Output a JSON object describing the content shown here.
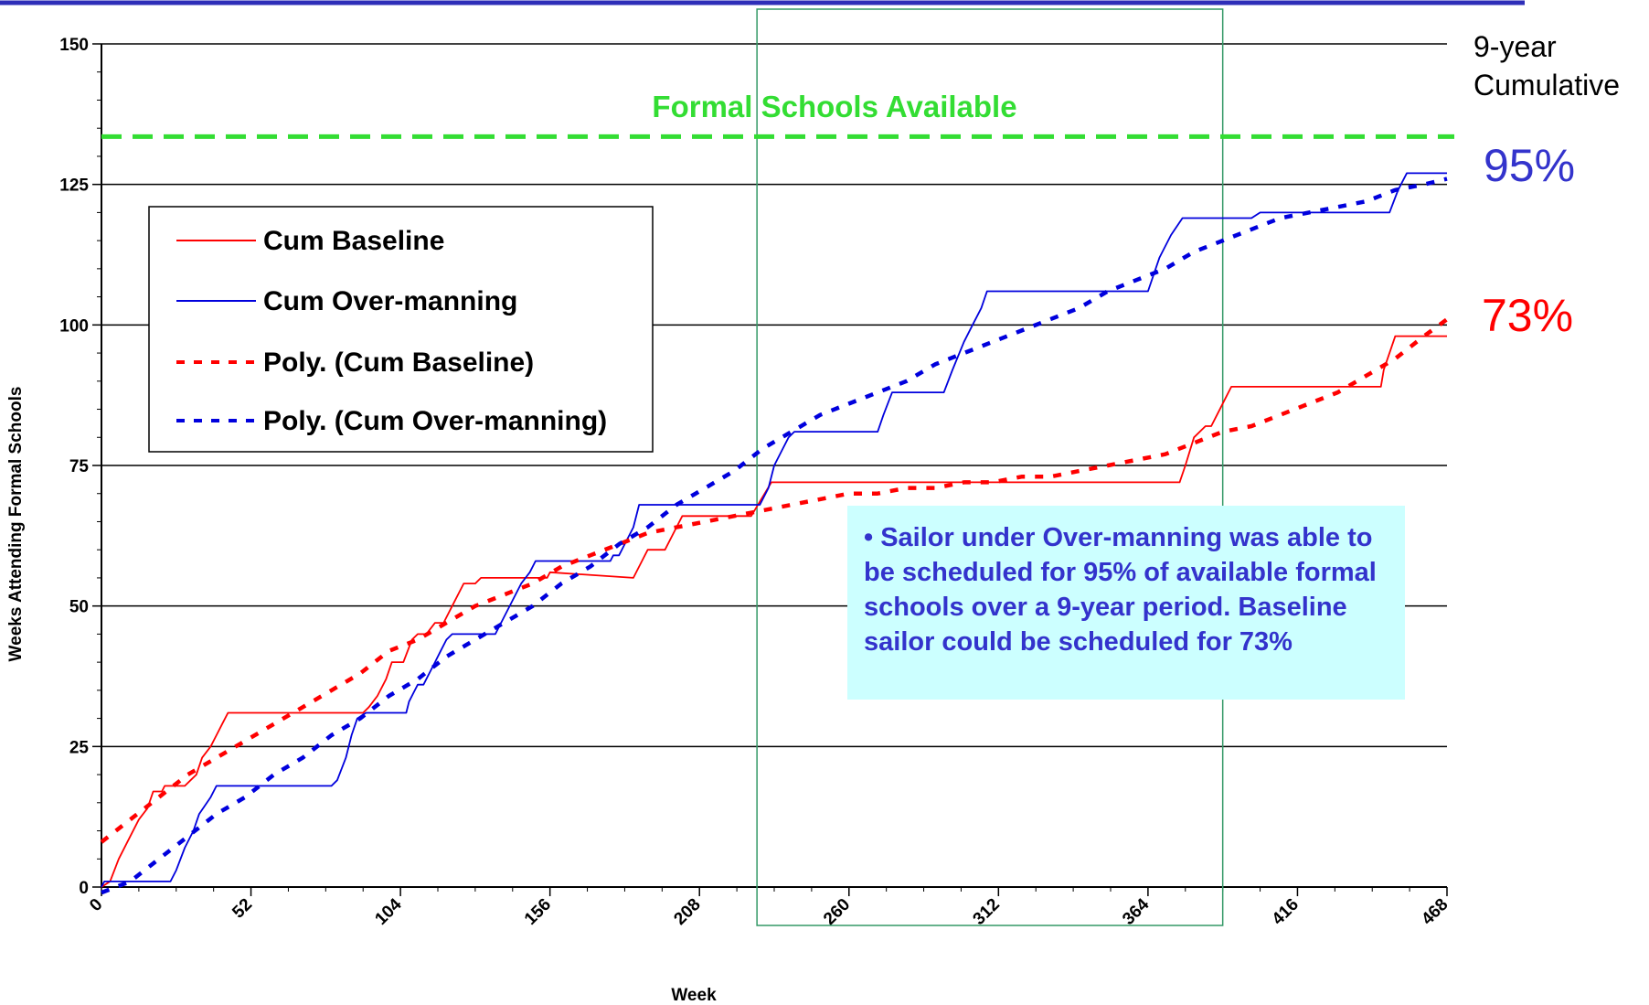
{
  "colors": {
    "baseline": "#ff0000",
    "overmanning": "#0000dd",
    "available": "#33dd33",
    "callout_bg": "#ccffff",
    "callout_text": "#3333cc",
    "highlight_box": "#339966"
  },
  "header_rule": true,
  "reference_line": {
    "label": "Formal Schools Available",
    "value": 133.5
  },
  "right_labels": {
    "title_line1": "9-year",
    "title_line2": "Cumulative",
    "overmanning_pct": "95%",
    "baseline_pct": "73%"
  },
  "callout": {
    "text": "• Sailor under Over-manning was able to be scheduled for 95% of available formal schools over a 9-year period.  Baseline sailor could be scheduled for 73%"
  },
  "highlight_range": [
    228,
    390
  ],
  "chart_data": {
    "type": "line",
    "xlabel": "Week",
    "ylabel": "Weeks Attending Formal Schools",
    "xlim": [
      0,
      468
    ],
    "ylim": [
      0,
      150
    ],
    "xticks": [
      "0",
      "52",
      "104",
      "156",
      "208",
      "260",
      "312",
      "364",
      "416",
      "468"
    ],
    "yticks": [
      "0",
      "25",
      "50",
      "75",
      "100",
      "125",
      "150"
    ],
    "grid": "horizontal",
    "legend_position": "top-left",
    "series": [
      {
        "name": "Cum Baseline",
        "style": "solid",
        "points": [
          [
            0,
            0
          ],
          [
            3,
            1
          ],
          [
            6,
            5
          ],
          [
            9,
            8
          ],
          [
            13,
            12
          ],
          [
            16,
            14
          ],
          [
            18,
            17
          ],
          [
            20,
            17
          ],
          [
            21,
            17
          ],
          [
            22,
            18
          ],
          [
            25,
            18
          ],
          [
            26,
            18
          ],
          [
            27,
            18
          ],
          [
            29,
            18
          ],
          [
            31,
            19
          ],
          [
            33,
            20
          ],
          [
            35,
            23
          ],
          [
            38,
            25
          ],
          [
            40,
            27
          ],
          [
            42,
            29
          ],
          [
            44,
            31
          ],
          [
            52,
            31
          ],
          [
            80,
            31
          ],
          [
            91,
            31
          ],
          [
            93,
            32
          ],
          [
            96,
            34
          ],
          [
            99,
            37
          ],
          [
            101,
            40
          ],
          [
            105,
            40
          ],
          [
            108,
            44
          ],
          [
            110,
            45
          ],
          [
            113,
            45
          ],
          [
            116,
            47
          ],
          [
            119,
            47
          ],
          [
            122,
            50
          ],
          [
            126,
            54
          ],
          [
            130,
            54
          ],
          [
            132,
            55
          ],
          [
            145,
            55
          ],
          [
            155,
            55
          ],
          [
            156,
            56
          ],
          [
            185,
            55
          ],
          [
            188,
            58
          ],
          [
            190,
            60
          ],
          [
            196,
            60
          ],
          [
            200,
            64
          ],
          [
            202,
            66
          ],
          [
            218,
            66
          ],
          [
            222,
            66
          ],
          [
            224,
            66
          ],
          [
            226,
            66
          ],
          [
            233,
            72
          ],
          [
            260,
            72
          ],
          [
            300,
            72
          ],
          [
            340,
            72
          ],
          [
            371,
            72
          ],
          [
            375,
            72
          ],
          [
            377,
            75
          ],
          [
            380,
            80
          ],
          [
            384,
            82
          ],
          [
            386,
            82
          ],
          [
            388,
            84
          ],
          [
            391,
            87
          ],
          [
            393,
            89
          ],
          [
            400,
            89
          ],
          [
            430,
            89
          ],
          [
            445,
            89
          ],
          [
            446,
            92
          ],
          [
            448,
            95
          ],
          [
            450,
            98
          ],
          [
            462,
            98
          ],
          [
            468,
            98
          ]
        ]
      },
      {
        "name": "Cum Over-manning",
        "style": "solid",
        "points": [
          [
            0,
            0
          ],
          [
            1,
            1
          ],
          [
            3,
            1
          ],
          [
            10,
            1
          ],
          [
            24,
            1
          ],
          [
            26,
            3
          ],
          [
            29,
            7
          ],
          [
            32,
            10
          ],
          [
            34,
            13
          ],
          [
            38,
            16
          ],
          [
            40,
            18
          ],
          [
            45,
            18
          ],
          [
            52,
            18
          ],
          [
            60,
            18
          ],
          [
            70,
            18
          ],
          [
            80,
            18
          ],
          [
            82,
            19
          ],
          [
            85,
            23
          ],
          [
            87,
            27
          ],
          [
            89,
            30
          ],
          [
            92,
            31
          ],
          [
            95,
            31
          ],
          [
            102,
            31
          ],
          [
            106,
            31
          ],
          [
            107,
            33
          ],
          [
            109,
            35
          ],
          [
            110,
            36
          ],
          [
            112,
            36
          ],
          [
            114,
            38
          ],
          [
            116,
            40
          ],
          [
            118,
            42
          ],
          [
            120,
            44
          ],
          [
            122,
            45
          ],
          [
            130,
            45
          ],
          [
            137,
            45
          ],
          [
            140,
            48
          ],
          [
            143,
            51
          ],
          [
            146,
            54
          ],
          [
            149,
            56
          ],
          [
            151,
            58
          ],
          [
            168,
            58
          ],
          [
            177,
            58
          ],
          [
            178,
            59
          ],
          [
            180,
            59
          ],
          [
            182,
            61
          ],
          [
            185,
            64
          ],
          [
            187,
            68
          ],
          [
            197,
            68
          ],
          [
            205,
            68
          ],
          [
            208,
            68
          ],
          [
            220,
            68
          ],
          [
            229,
            68
          ],
          [
            232,
            71
          ],
          [
            234,
            75
          ],
          [
            237,
            78
          ],
          [
            239,
            80
          ],
          [
            241,
            81
          ],
          [
            260,
            81
          ],
          [
            270,
            81
          ],
          [
            272,
            84
          ],
          [
            275,
            88
          ],
          [
            285,
            88
          ],
          [
            293,
            88
          ],
          [
            296,
            92
          ],
          [
            300,
            97
          ],
          [
            303,
            100
          ],
          [
            306,
            103
          ],
          [
            308,
            106
          ],
          [
            320,
            106
          ],
          [
            340,
            106
          ],
          [
            359,
            106
          ],
          [
            364,
            106
          ],
          [
            368,
            112
          ],
          [
            372,
            116
          ],
          [
            376,
            119
          ],
          [
            380,
            119
          ],
          [
            400,
            119
          ],
          [
            403,
            120
          ],
          [
            420,
            120
          ],
          [
            448,
            120
          ],
          [
            451,
            124
          ],
          [
            454,
            127
          ],
          [
            460,
            127
          ],
          [
            468,
            127
          ]
        ]
      },
      {
        "name": "Poly. (Cum Baseline)",
        "style": "dashed",
        "points": [
          [
            0,
            8
          ],
          [
            10,
            12
          ],
          [
            20,
            16
          ],
          [
            30,
            20
          ],
          [
            40,
            23
          ],
          [
            50,
            26
          ],
          [
            60,
            29
          ],
          [
            70,
            32
          ],
          [
            80,
            35
          ],
          [
            90,
            38
          ],
          [
            100,
            42
          ],
          [
            110,
            44
          ],
          [
            120,
            47
          ],
          [
            130,
            50
          ],
          [
            140,
            52
          ],
          [
            150,
            54
          ],
          [
            160,
            57
          ],
          [
            170,
            59
          ],
          [
            180,
            61
          ],
          [
            190,
            63
          ],
          [
            200,
            64
          ],
          [
            210,
            65
          ],
          [
            220,
            66
          ],
          [
            230,
            67
          ],
          [
            240,
            68
          ],
          [
            250,
            69
          ],
          [
            260,
            70
          ],
          [
            270,
            70
          ],
          [
            280,
            71
          ],
          [
            290,
            71
          ],
          [
            300,
            72
          ],
          [
            310,
            72
          ],
          [
            320,
            73
          ],
          [
            330,
            73
          ],
          [
            340,
            74
          ],
          [
            350,
            75
          ],
          [
            360,
            76
          ],
          [
            370,
            77
          ],
          [
            380,
            79
          ],
          [
            390,
            81
          ],
          [
            400,
            82
          ],
          [
            410,
            84
          ],
          [
            420,
            86
          ],
          [
            430,
            88
          ],
          [
            440,
            91
          ],
          [
            450,
            94
          ],
          [
            460,
            98
          ],
          [
            468,
            101
          ]
        ]
      },
      {
        "name": "Poly. (Cum Over-manning)",
        "style": "dashed",
        "points": [
          [
            0,
            -3
          ],
          [
            10,
            1
          ],
          [
            20,
            5
          ],
          [
            30,
            9
          ],
          [
            40,
            13
          ],
          [
            50,
            16
          ],
          [
            60,
            20
          ],
          [
            70,
            23
          ],
          [
            80,
            27
          ],
          [
            90,
            30
          ],
          [
            100,
            34
          ],
          [
            110,
            37
          ],
          [
            120,
            41
          ],
          [
            130,
            44
          ],
          [
            140,
            47
          ],
          [
            150,
            50
          ],
          [
            160,
            54
          ],
          [
            170,
            57
          ],
          [
            180,
            61
          ],
          [
            190,
            64
          ],
          [
            200,
            68
          ],
          [
            210,
            71
          ],
          [
            220,
            74
          ],
          [
            230,
            78
          ],
          [
            240,
            81
          ],
          [
            250,
            84
          ],
          [
            260,
            86
          ],
          [
            270,
            88
          ],
          [
            280,
            90
          ],
          [
            290,
            93
          ],
          [
            300,
            95
          ],
          [
            310,
            97
          ],
          [
            320,
            99
          ],
          [
            330,
            101
          ],
          [
            340,
            103
          ],
          [
            350,
            106
          ],
          [
            360,
            108
          ],
          [
            370,
            110
          ],
          [
            380,
            113
          ],
          [
            390,
            115
          ],
          [
            400,
            117
          ],
          [
            410,
            119
          ],
          [
            420,
            120
          ],
          [
            430,
            121
          ],
          [
            440,
            122
          ],
          [
            450,
            124
          ],
          [
            460,
            125
          ],
          [
            468,
            126
          ]
        ]
      }
    ]
  }
}
